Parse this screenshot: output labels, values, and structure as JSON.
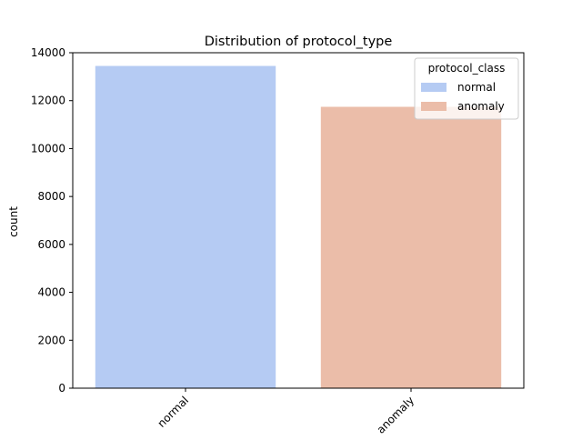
{
  "chart_data": {
    "type": "bar",
    "title": "Distribution of protocol_type",
    "xlabel": "",
    "ylabel": "count",
    "categories": [
      "normal",
      "anomaly"
    ],
    "values": [
      13449,
      11743
    ],
    "colors": [
      "#b5cbf3",
      "#ebbda9"
    ],
    "ylim": [
      0,
      14000
    ],
    "yticks": [
      0,
      2000,
      4000,
      6000,
      8000,
      10000,
      12000,
      14000
    ],
    "grid": false,
    "legend": {
      "title": "protocol_class",
      "placement": "upper-right",
      "entries": [
        {
          "label": "normal",
          "color": "#b5cbf3"
        },
        {
          "label": "anomaly",
          "color": "#ebbda9"
        }
      ]
    }
  }
}
